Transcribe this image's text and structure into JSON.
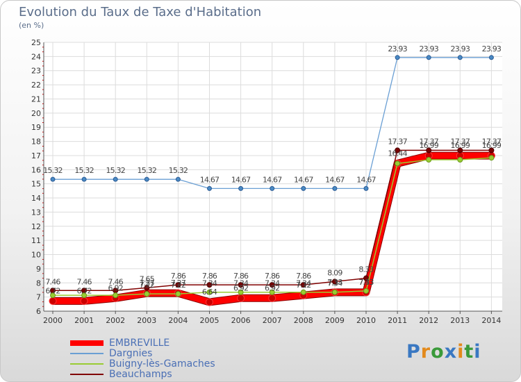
{
  "logo": {
    "text": "Proxiti",
    "colors": [
      "#3a78c2",
      "#e38a1c",
      "#3a9a3a",
      "#3a78c2",
      "#e38a1c",
      "#3a9a3a",
      "#3a78c2"
    ]
  },
  "chart_data": {
    "type": "line",
    "title": "Evolution du Taux de Taxe d'Habitation",
    "unit": "(en %)",
    "xlabel": "",
    "ylabel": "",
    "ylim": [
      6,
      25
    ],
    "yticks": [
      6,
      7,
      8,
      9,
      10,
      11,
      12,
      13,
      14,
      15,
      16,
      17,
      18,
      19,
      20,
      21,
      22,
      23,
      24,
      25
    ],
    "categories": [
      "2000",
      "2001",
      "2002",
      "2003",
      "2004",
      "2005",
      "2006",
      "2007",
      "2008",
      "2009",
      "2010",
      "2011",
      "2012",
      "2013",
      "2014"
    ],
    "grid": true,
    "legend": "bottom-left",
    "series": [
      {
        "name": "EMBREVILLE",
        "color": "#ff0000",
        "values": [
          6.72,
          6.72,
          6.92,
          7.27,
          7.27,
          6.64,
          6.92,
          6.92,
          7.12,
          7.33,
          7.33,
          16.44,
          16.99,
          16.99,
          16.99
        ],
        "labels": [
          "6.72",
          "6.72",
          "6.92",
          "7.27",
          "7.27",
          "6.64",
          "6.92",
          "6.92",
          "7.12",
          "7.33",
          "7.33",
          "16.44",
          "16.99",
          "16.99",
          "16.99"
        ]
      },
      {
        "name": "Dargnies",
        "color": "#6a9fd4",
        "values": [
          15.32,
          15.32,
          15.32,
          15.32,
          15.32,
          14.67,
          14.67,
          14.67,
          14.67,
          14.67,
          14.67,
          23.93,
          23.93,
          23.93,
          23.93
        ],
        "labels": [
          "15.32",
          "15.32",
          "15.32",
          "15.32",
          "15.32",
          "14.67",
          "14.67",
          "14.67",
          "14.67",
          "14.67",
          "14.67",
          "23.93",
          "23.93",
          "23.93",
          "23.93"
        ]
      },
      {
        "name": "Buigny-lès-Gamaches",
        "color": "#99cc33",
        "values": [
          7.12,
          7.12,
          7.12,
          7.22,
          7.22,
          7.34,
          7.34,
          7.34,
          7.34,
          7.34,
          7.43,
          16.44,
          16.7,
          16.7,
          16.84
        ],
        "labels": [
          "",
          "",
          "",
          "7.22",
          "7.22",
          "7.34",
          "7.34",
          "7.34",
          "7.34",
          "7.34",
          "7.43",
          "",
          "",
          "",
          ""
        ]
      },
      {
        "name": "Beauchamps",
        "color": "#800000",
        "values": [
          7.46,
          7.46,
          7.46,
          7.65,
          7.86,
          7.86,
          7.86,
          7.86,
          7.86,
          8.09,
          8.33,
          17.37,
          17.37,
          17.37,
          17.37
        ],
        "labels": [
          "7.46",
          "7.46",
          "7.46",
          "7.65",
          "7.86",
          "7.86",
          "7.86",
          "7.86",
          "7.86",
          "8.09",
          "8.33",
          "17.37",
          "17.37",
          "17.37",
          "17.37"
        ]
      }
    ]
  }
}
